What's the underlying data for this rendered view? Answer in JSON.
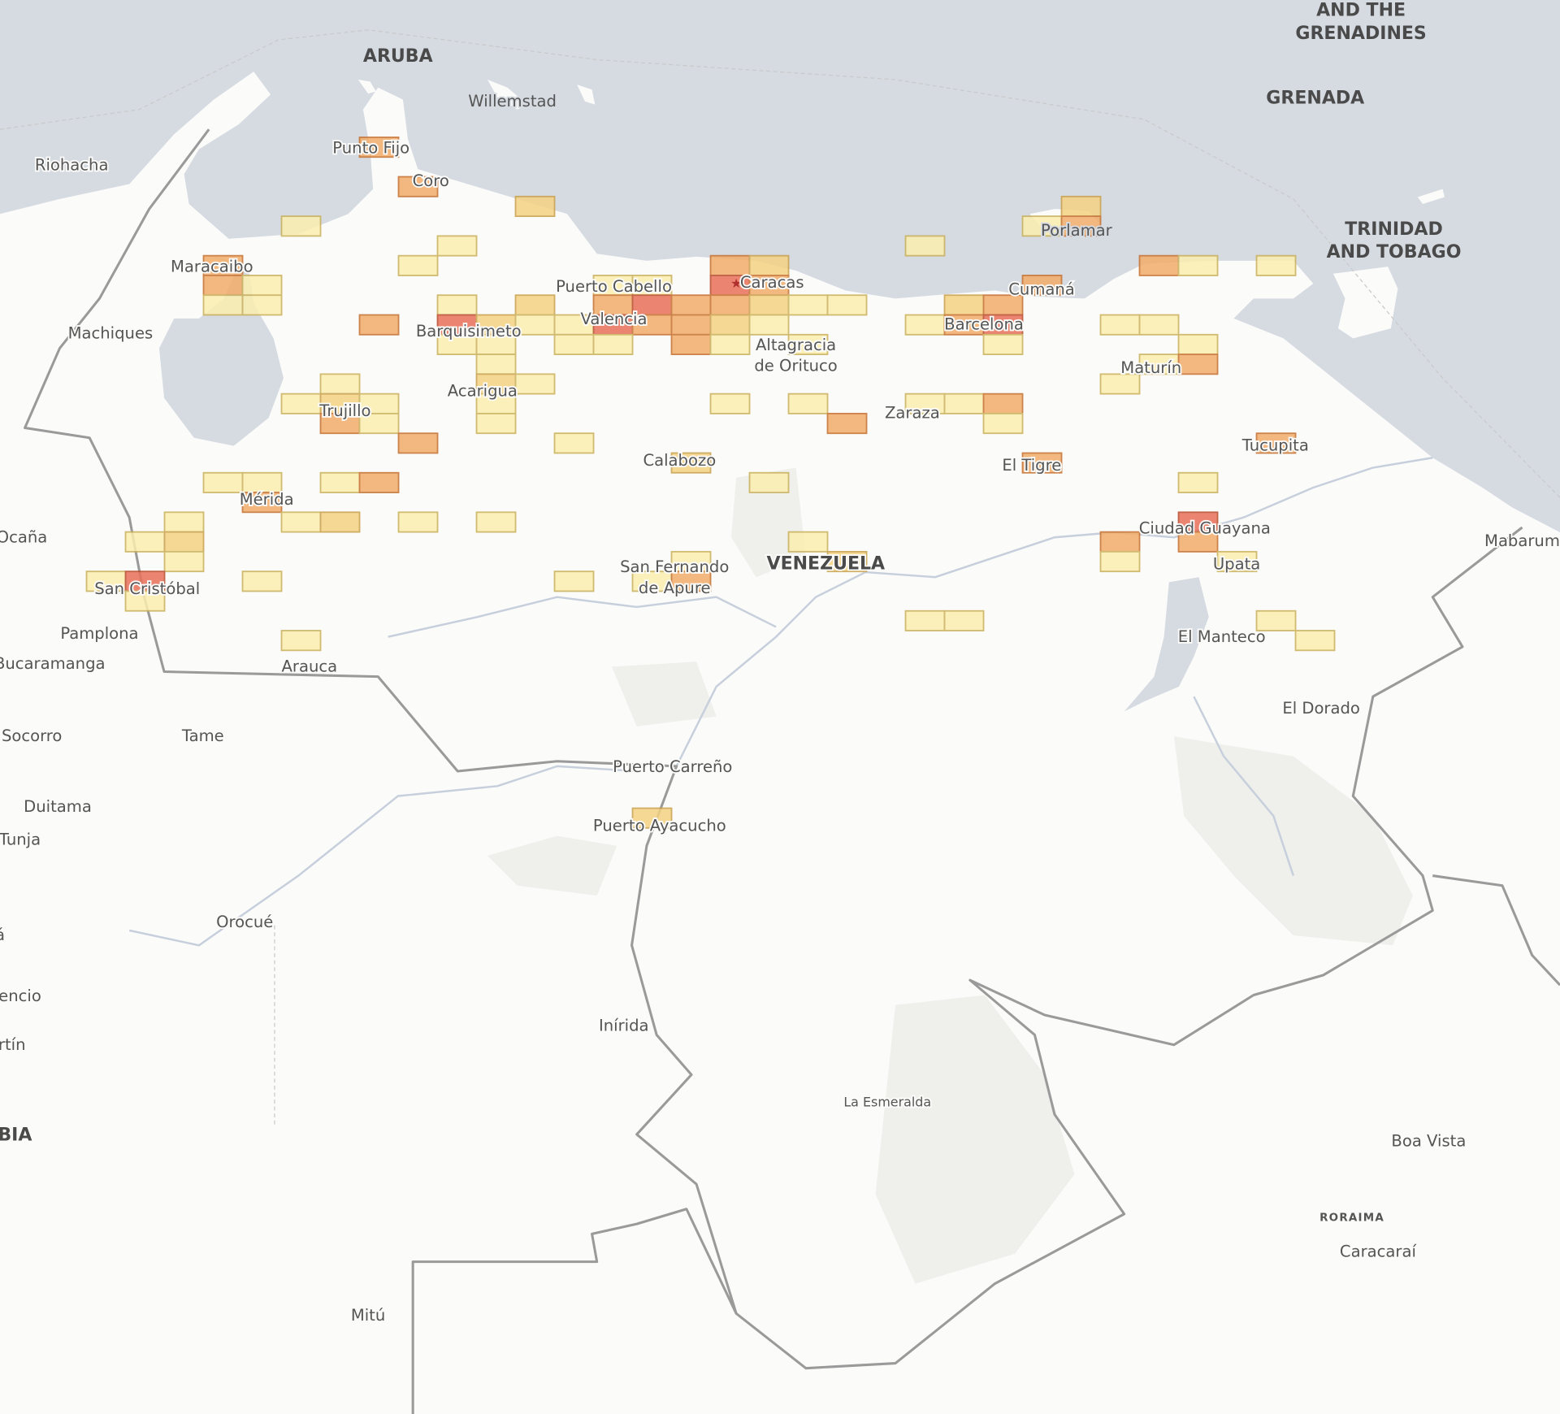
{
  "map": {
    "colors": {
      "sea": "#d6dbe2",
      "land": "#fbfbfa",
      "border": "#9a9a9a",
      "level_1": "#fbeeb0",
      "level_2": "#f5d283",
      "level_3": "#f2ad6a",
      "level_4": "#e9705a"
    },
    "capital_icon": "star-icon",
    "labels": {
      "and_the": "AND THE",
      "grenadines": "GRENADINES",
      "aruba": "ARUBA",
      "willemstad": "Willemstad",
      "grenada": "GRENADA",
      "punto_fijo": "Punto Fijo",
      "coro": "Coro",
      "riohacha": "Riohacha",
      "porlamar": "Porlamar",
      "trinidad": "TRINIDAD",
      "and_tobago": "AND TOBAGO",
      "maracaibo": "Maracaibo",
      "puerto_cabello": "Puerto Cabello",
      "caracas": "Caracas",
      "cumana": "Cumaná",
      "machiques": "Machiques",
      "barquisimeto": "Barquisimeto",
      "valencia": "Valencia",
      "barcelona": "Barcelona",
      "altagracia": "Altagracia",
      "de_orituco": "de Orituco",
      "maturin": "Maturín",
      "acarigua": "Acarigua",
      "trujillo": "Trujillo",
      "zaraza": "Zaraza",
      "tucupita": "Tucupita",
      "calabozo": "Calabozo",
      "el_tigre": "El Tigre",
      "merida": "Mérida",
      "ciudad_guayana": "Ciudad Guayana",
      "ocana": "Ocaña",
      "mabarum": "Mabarum",
      "san_fernando": "San Fernando",
      "de_apure": "de Apure",
      "venezuela": "VENEZUELA",
      "upata": "Upata",
      "san_cristobal": "San Cristóbal",
      "pamplona": "Pamplona",
      "el_manteco": "El Manteco",
      "bucaramanga": "Bucaramanga",
      "arauca": "Arauca",
      "el_dorado": "El Dorado",
      "socorro": "Socorro",
      "tame": "Tame",
      "puerto_carreno": "Puerto Carreño",
      "duitama": "Duitama",
      "puerto_ayacucho": "Puerto Ayacucho",
      "tunja": "Tunja",
      "orocue": "Orocué",
      "a_partial": "á",
      "encio": "encio",
      "rtin": "rtín",
      "inirida": "Inírida",
      "la_esmeralda": "La Esmeralda",
      "bia": "BIA",
      "boa_vista": "Boa Vista",
      "roraima": "RORAIMA",
      "caracarai": "Caracaraí",
      "mitu": "Mitú"
    },
    "heatmap_cells": [
      [
        7,
        0,
        3
      ],
      [
        8,
        2,
        3
      ],
      [
        11,
        3,
        2
      ],
      [
        5,
        4,
        1
      ],
      [
        9,
        5,
        1
      ],
      [
        8,
        6,
        1
      ],
      [
        3,
        6,
        3
      ],
      [
        3,
        7,
        3
      ],
      [
        4,
        7,
        1
      ],
      [
        3,
        8,
        1
      ],
      [
        4,
        8,
        1
      ],
      [
        7,
        9,
        3
      ],
      [
        16,
        6,
        3
      ],
      [
        17,
        6,
        2
      ],
      [
        13,
        7,
        1
      ],
      [
        14,
        7,
        1
      ],
      [
        16,
        7,
        4
      ],
      [
        17,
        7,
        3
      ],
      [
        9,
        8,
        1
      ],
      [
        11,
        8,
        2
      ],
      [
        13,
        8,
        3
      ],
      [
        14,
        8,
        4
      ],
      [
        15,
        8,
        3
      ],
      [
        16,
        8,
        3
      ],
      [
        17,
        8,
        2
      ],
      [
        18,
        8,
        1
      ],
      [
        19,
        8,
        1
      ],
      [
        9,
        9,
        4
      ],
      [
        10,
        9,
        2
      ],
      [
        11,
        9,
        1
      ],
      [
        12,
        9,
        1
      ],
      [
        13,
        9,
        4
      ],
      [
        14,
        9,
        3
      ],
      [
        15,
        9,
        3
      ],
      [
        16,
        9,
        2
      ],
      [
        17,
        9,
        1
      ],
      [
        9,
        10,
        1
      ],
      [
        10,
        10,
        1
      ],
      [
        12,
        10,
        1
      ],
      [
        13,
        10,
        1
      ],
      [
        15,
        10,
        3
      ],
      [
        16,
        10,
        1
      ],
      [
        18,
        10,
        1
      ],
      [
        10,
        11,
        1
      ],
      [
        10,
        12,
        2
      ],
      [
        11,
        12,
        1
      ],
      [
        10,
        13,
        1
      ],
      [
        10,
        14,
        1
      ],
      [
        6,
        12,
        1
      ],
      [
        5,
        13,
        1
      ],
      [
        6,
        13,
        2
      ],
      [
        7,
        13,
        1
      ],
      [
        6,
        14,
        3
      ],
      [
        7,
        14,
        1
      ],
      [
        8,
        15,
        3
      ],
      [
        12,
        15,
        1
      ],
      [
        3,
        17,
        1
      ],
      [
        4,
        17,
        1
      ],
      [
        4,
        18,
        3
      ],
      [
        6,
        17,
        1
      ],
      [
        7,
        17,
        3
      ],
      [
        5,
        19,
        1
      ],
      [
        6,
        19,
        2
      ],
      [
        8,
        19,
        1
      ],
      [
        10,
        19,
        1
      ],
      [
        2,
        19,
        1
      ],
      [
        1,
        20,
        1
      ],
      [
        2,
        20,
        2
      ],
      [
        2,
        21,
        1
      ],
      [
        0,
        22,
        1
      ],
      [
        1,
        22,
        4
      ],
      [
        1,
        23,
        1
      ],
      [
        4,
        22,
        1
      ],
      [
        5,
        25,
        1
      ],
      [
        16,
        13,
        1
      ],
      [
        18,
        13,
        1
      ],
      [
        19,
        14,
        3
      ],
      [
        17,
        17,
        1
      ],
      [
        15,
        16,
        2
      ],
      [
        15,
        21,
        1
      ],
      [
        14,
        22,
        1
      ],
      [
        15,
        22,
        3
      ],
      [
        12,
        22,
        1
      ],
      [
        18,
        20,
        1
      ],
      [
        19,
        21,
        2
      ],
      [
        21,
        24,
        1
      ],
      [
        22,
        24,
        1
      ],
      [
        14,
        34,
        2
      ],
      [
        21,
        5,
        1
      ],
      [
        25,
        3,
        2
      ],
      [
        24,
        4,
        1
      ],
      [
        25,
        4,
        3
      ],
      [
        24,
        7,
        3
      ],
      [
        22,
        8,
        2
      ],
      [
        23,
        8,
        3
      ],
      [
        21,
        9,
        1
      ],
      [
        22,
        9,
        3
      ],
      [
        23,
        9,
        4
      ],
      [
        23,
        10,
        1
      ],
      [
        26,
        9,
        1
      ],
      [
        27,
        9,
        1
      ],
      [
        28,
        10,
        1
      ],
      [
        27,
        11,
        1
      ],
      [
        28,
        11,
        3
      ],
      [
        26,
        12,
        1
      ],
      [
        27,
        6,
        3
      ],
      [
        28,
        6,
        1
      ],
      [
        30,
        6,
        1
      ],
      [
        21,
        13,
        1
      ],
      [
        22,
        13,
        1
      ],
      [
        23,
        13,
        3
      ],
      [
        23,
        14,
        1
      ],
      [
        24,
        16,
        3
      ],
      [
        30,
        15,
        3
      ],
      [
        28,
        17,
        1
      ],
      [
        28,
        19,
        4
      ],
      [
        28,
        20,
        3
      ],
      [
        26,
        20,
        3
      ],
      [
        26,
        21,
        1
      ],
      [
        29,
        21,
        1
      ],
      [
        30,
        24,
        1
      ],
      [
        31,
        25,
        1
      ]
    ]
  }
}
